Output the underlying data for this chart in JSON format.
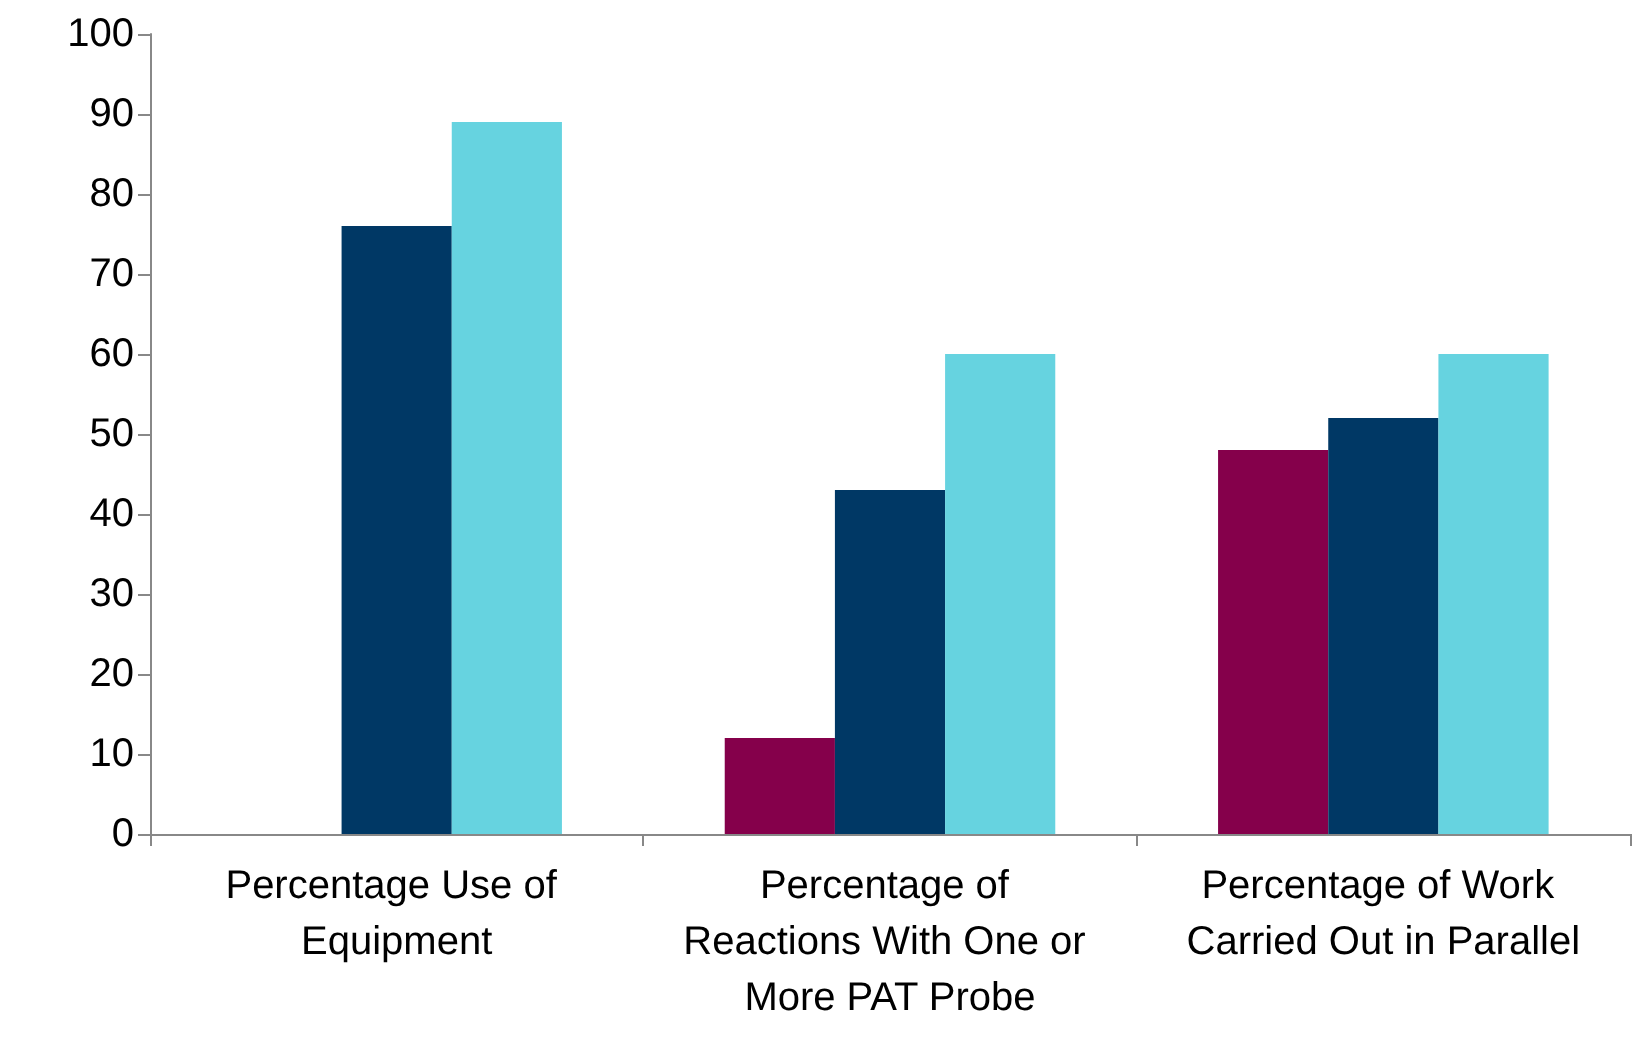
{
  "chart_data": {
    "type": "bar",
    "categories": [
      "Percentage Use of Equipment",
      "Percentage of Reactions With One or More PAT Probe",
      "Percentage of Work Carried Out in Parallel"
    ],
    "series": [
      {
        "color": "#85004b",
        "values": [
          null,
          12,
          48
        ]
      },
      {
        "color": "#003865",
        "values": [
          76,
          43,
          52
        ]
      },
      {
        "color": "#66d3e0",
        "values": [
          89,
          60,
          60
        ]
      }
    ],
    "ylim": [
      0,
      100
    ],
    "yticks": [
      0,
      10,
      20,
      30,
      40,
      50,
      60,
      70,
      80,
      90,
      100
    ]
  }
}
